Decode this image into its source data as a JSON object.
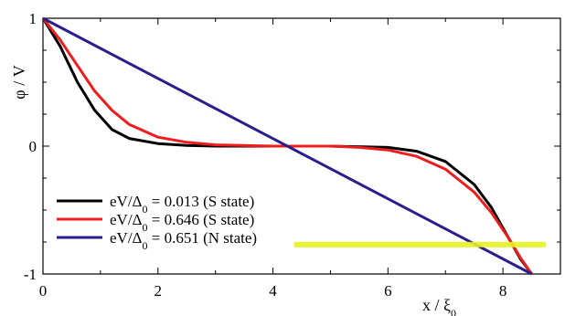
{
  "chart_data": {
    "type": "line",
    "xlabel": "x / ξ",
    "xlabel_sub": "0",
    "ylabel": "φ / V",
    "xlim": [
      0,
      9
    ],
    "ylim": [
      -1,
      1
    ],
    "x_ticks": [
      "0",
      "2",
      "4",
      "6",
      "8"
    ],
    "y_ticks": [
      "-1",
      "0",
      "1"
    ],
    "legend_position": "bottom-left",
    "series": [
      {
        "label_prefix": "eV/Δ",
        "label_sub": "0",
        "label_suffix": " = 0.013 (S state)",
        "color": "#000000",
        "x": [
          0,
          0.3,
          0.6,
          0.9,
          1.2,
          1.5,
          2.0,
          2.5,
          3,
          4,
          5,
          6,
          6.5,
          7,
          7.5,
          7.8,
          8.1,
          8.3,
          8.5
        ],
        "y": [
          1,
          0.78,
          0.5,
          0.28,
          0.13,
          0.06,
          0.02,
          0.005,
          0,
          0,
          0,
          -0.01,
          -0.04,
          -0.12,
          -0.3,
          -0.48,
          -0.72,
          -0.88,
          -1
        ]
      },
      {
        "label_prefix": "eV/Δ",
        "label_sub": "0",
        "label_suffix": " = 0.646 (S state)",
        "color": "#ee1c1c",
        "x": [
          0,
          0.3,
          0.6,
          0.9,
          1.2,
          1.5,
          2.0,
          2.5,
          3,
          4,
          5,
          5.5,
          6,
          6.5,
          7,
          7.5,
          7.8,
          8.1,
          8.3,
          8.5
        ],
        "y": [
          1,
          0.83,
          0.63,
          0.43,
          0.28,
          0.17,
          0.07,
          0.03,
          0.01,
          0,
          0,
          -0.01,
          -0.03,
          -0.08,
          -0.18,
          -0.36,
          -0.52,
          -0.72,
          -0.87,
          -1
        ]
      },
      {
        "label_prefix": "eV/Δ",
        "label_sub": "0",
        "label_suffix": " = 0.651 (N state)",
        "color": "#2a1e8c",
        "x": [
          0,
          8.5
        ],
        "y": [
          1,
          -1
        ]
      }
    ]
  }
}
